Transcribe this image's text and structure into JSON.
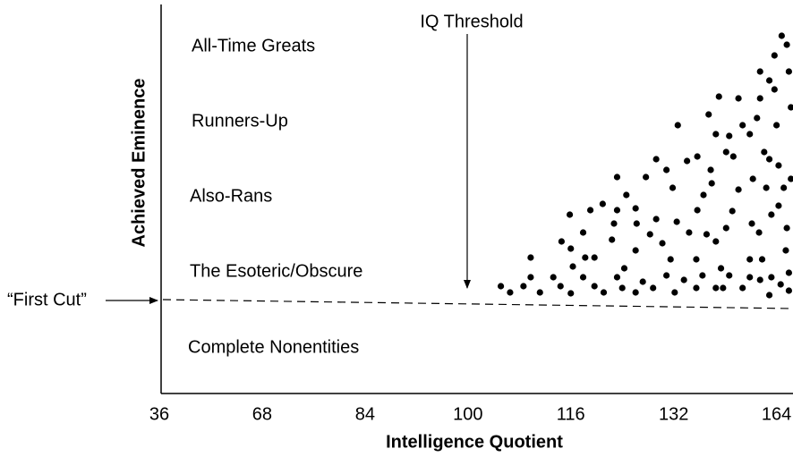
{
  "chart_data": {
    "type": "scatter",
    "xlabel": "Intelligence Quotient",
    "ylabel": "Achieved Eminence",
    "levels": [
      "All-Time Greats",
      "Runners-Up",
      "Also-Rans",
      "The Esoteric/Obscure",
      "Complete Nonentities"
    ],
    "annotations": [
      "IQ Threshold",
      "“First Cut”"
    ],
    "xlim": [
      0,
      6.16
    ],
    "ylim": [
      0,
      435
    ],
    "xticks": [
      {
        "value": 0,
        "label": "36"
      },
      {
        "value": 1,
        "label": "68"
      },
      {
        "value": 2,
        "label": "84"
      },
      {
        "value": 3,
        "label": "100"
      },
      {
        "value": 4,
        "label": "116"
      },
      {
        "value": 5,
        "label": "132"
      },
      {
        "value": 6,
        "label": "164"
      }
    ],
    "color": "#000000",
    "x": [
      3.32,
      3.41,
      3.54,
      3.61,
      3.7,
      3.83,
      3.9,
      4.0,
      4.12,
      4.23,
      4.32,
      4.45,
      4.5,
      4.63,
      4.7,
      4.8,
      4.93,
      5.01,
      5.1,
      5.22,
      5.28,
      5.41,
      5.48,
      5.54,
      5.67,
      5.74,
      5.84,
      5.93,
      5.95,
      6.04,
      6.12,
      6.12,
      3.61,
      3.91,
      4.0,
      4.02,
      4.12,
      4.14,
      4.23,
      4.31,
      4.4,
      4.42,
      4.52,
      4.54,
      4.63,
      4.64,
      4.73,
      4.77,
      4.83,
      4.89,
      4.93,
      4.97,
      5.03,
      5.15,
      5.22,
      5.23,
      5.29,
      5.32,
      5.36,
      5.41,
      5.46,
      5.51,
      5.57,
      5.63,
      5.74,
      5.76,
      5.83,
      5.86,
      5.9,
      5.95,
      6.02,
      6.09,
      6.1,
      6.14,
      6.07,
      3.99,
      4.19,
      4.45,
      4.83,
      5.04,
      5.13,
      5.23,
      5.34,
      5.41,
      5.44,
      5.51,
      5.54,
      5.63,
      5.67,
      5.74,
      5.81,
      5.84,
      5.88,
      5.93,
      6.0,
      6.02,
      5.84,
      5.93,
      5.98,
      6.05,
      6.1,
      6.12,
      6.14,
      5.98,
      5.77,
      5.58,
      5.37,
      4.99,
      4.63,
      4.45
    ],
    "values": [
      120,
      113,
      120,
      130,
      113,
      130,
      120,
      112,
      130,
      120,
      113,
      130,
      118,
      113,
      125,
      118,
      132,
      113,
      127,
      118,
      132,
      118,
      118,
      132,
      118,
      130,
      127,
      110,
      130,
      122,
      115,
      135,
      152,
      170,
      162,
      142,
      180,
      152,
      152,
      212,
      172,
      190,
      140,
      222,
      160,
      190,
      242,
      178,
      195,
      168,
      250,
      150,
      192,
      180,
      150,
      205,
      222,
      178,
      250,
      170,
      140,
      185,
      204,
      228,
      150,
      190,
      180,
      150,
      230,
      200,
      210,
      160,
      185,
      240,
      230,
      200,
      205,
      242,
      262,
      300,
      260,
      265,
      312,
      290,
      332,
      270,
      288,
      330,
      300,
      290,
      308,
      330,
      270,
      262,
      300,
      255,
      360,
      350,
      340,
      400,
      390,
      360,
      320,
      378,
      240,
      265,
      235,
      230,
      207,
      205
    ]
  }
}
